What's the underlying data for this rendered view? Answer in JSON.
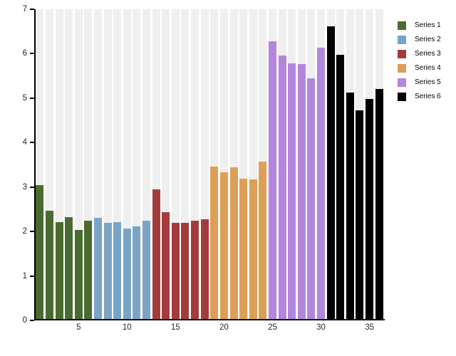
{
  "chart_data": {
    "type": "bar",
    "title": "",
    "xlabel": "",
    "ylabel": "",
    "ylim": [
      0,
      7
    ],
    "yticks": [
      0,
      1,
      2,
      3,
      4,
      5,
      6,
      7
    ],
    "xticks": [
      5,
      10,
      15,
      20,
      25,
      30,
      35
    ],
    "x_range": [
      1,
      36
    ],
    "grid": "off",
    "background_band_color": "#efefef",
    "axis_color": "#000000",
    "legend_position": "top-right outside plot",
    "series": [
      {
        "name": "Series 1",
        "color": "#4a6b2f",
        "x": [
          1,
          2,
          3,
          4,
          5,
          6
        ],
        "values": [
          3.05,
          2.47,
          2.21,
          2.32,
          2.03,
          2.24
        ]
      },
      {
        "name": "Series 2",
        "color": "#7aa4c5",
        "x": [
          7,
          8,
          9,
          10,
          11,
          12
        ],
        "values": [
          2.31,
          2.19,
          2.21,
          2.07,
          2.11,
          2.24
        ]
      },
      {
        "name": "Series 3",
        "color": "#a23c3c",
        "x": [
          13,
          14,
          15,
          16,
          17,
          18
        ],
        "values": [
          2.95,
          2.43,
          2.2,
          2.19,
          2.24,
          2.28
        ]
      },
      {
        "name": "Series 4",
        "color": "#dd9f56",
        "x": [
          19,
          20,
          21,
          22,
          23,
          24
        ],
        "values": [
          3.46,
          3.33,
          3.45,
          3.19,
          3.17,
          3.57
        ]
      },
      {
        "name": "Series 5",
        "color": "#b385dc",
        "x": [
          25,
          26,
          27,
          28,
          29,
          30
        ],
        "values": [
          6.28,
          5.96,
          5.79,
          5.77,
          5.44,
          6.14
        ]
      },
      {
        "name": "Series 6",
        "color": "#000000",
        "x": [
          31,
          32,
          33,
          34,
          35,
          36
        ],
        "values": [
          6.61,
          5.98,
          5.12,
          4.72,
          4.99,
          5.21
        ]
      }
    ]
  }
}
